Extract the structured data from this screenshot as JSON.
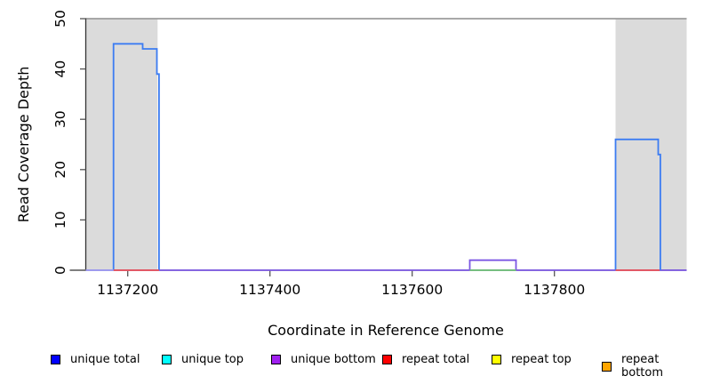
{
  "chart_data": {
    "type": "line",
    "title": "",
    "xlabel": "Coordinate in Reference Genome",
    "ylabel": "Read Coverage Depth",
    "xlim": [
      1137141,
      1137986
    ],
    "ylim": [
      0,
      50
    ],
    "x_ticks": [
      1137200,
      1137400,
      1137600,
      1137800
    ],
    "y_ticks": [
      0,
      10,
      20,
      30,
      40,
      50
    ],
    "grid": false,
    "coverage_cap": 50,
    "plot_colors": {
      "repeat_region_fill": "#DBDBDB",
      "cap_line": "#8C8C8C",
      "axis": "#333333",
      "tick": "#555555"
    },
    "repeat_regions": [
      {
        "start": 1137141,
        "end": 1137242
      },
      {
        "start": 1137886,
        "end": 1137986
      }
    ],
    "layers": [
      {
        "name": "unique-bottom-baseline",
        "color": "#7C57E3",
        "points": [
          [
            1137141,
            0
          ],
          [
            1137986,
            0
          ]
        ]
      },
      {
        "name": "unique-total-peak-1",
        "color": "#3C7CF2",
        "points": [
          [
            1137180,
            0
          ],
          [
            1137180,
            45
          ],
          [
            1137221,
            45
          ],
          [
            1137221,
            44
          ],
          [
            1137241,
            44
          ],
          [
            1137241,
            39
          ],
          [
            1137244,
            39
          ],
          [
            1137244,
            0
          ]
        ]
      },
      {
        "name": "unique-total-peak-2",
        "color": "#3C7CF2",
        "points": [
          [
            1137886,
            0
          ],
          [
            1137886,
            26
          ],
          [
            1137946,
            26
          ],
          [
            1137946,
            23
          ],
          [
            1137949,
            23
          ],
          [
            1137949,
            0
          ]
        ]
      },
      {
        "name": "unique-bottom-bump",
        "color": "#7C57E3",
        "points": [
          [
            1137681,
            0
          ],
          [
            1137681,
            2
          ],
          [
            1137746,
            2
          ],
          [
            1137746,
            0
          ]
        ]
      },
      {
        "name": "repeat-total-baseline-1",
        "color": "#EE5555",
        "points": [
          [
            1137180,
            0
          ],
          [
            1137244,
            0
          ]
        ]
      },
      {
        "name": "repeat-total-baseline-2",
        "color": "#EE5555",
        "points": [
          [
            1137886,
            0
          ],
          [
            1137948,
            0
          ]
        ]
      },
      {
        "name": "top-strand-overlap-baseline",
        "color": "#72C872",
        "points": [
          [
            1137681,
            0
          ],
          [
            1137746,
            0
          ]
        ]
      },
      {
        "name": "left-edge-overlap-baseline",
        "color": "#A0A0F0",
        "points": [
          [
            1137141,
            0
          ],
          [
            1137180,
            0
          ]
        ]
      }
    ],
    "legend": [
      {
        "label": "unique total",
        "color": "#0000FF"
      },
      {
        "label": "unique top",
        "color": "#00FFFF"
      },
      {
        "label": "unique bottom",
        "color": "#A020F0"
      },
      {
        "label": "repeat total",
        "color": "#FF0000"
      },
      {
        "label": "repeat top",
        "color": "#FFFF00"
      },
      {
        "label": "repeat bottom",
        "color": "#FFA500"
      }
    ]
  }
}
